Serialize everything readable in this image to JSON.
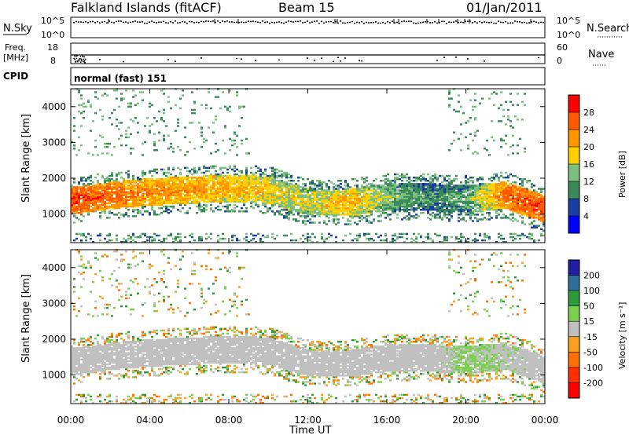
{
  "header": {
    "station": "Falkland Islands (fitACF)",
    "beam": "Beam 15",
    "date": "01/Jan/2011"
  },
  "panels": {
    "nsky_label": "N.Sky",
    "nsearch_label": "N.Search",
    "freq_label_1": "Freq.",
    "freq_label_2": "[MHz]",
    "nave_label": "Nave",
    "cpid_label": "CPID",
    "cpid_value": "normal (fast) 151",
    "noise_ticks": [
      "10^5",
      "10^0"
    ],
    "freq_ticks": [
      "18",
      "8"
    ],
    "nave_ticks": [
      "60",
      "0"
    ]
  },
  "colorbars": {
    "power": {
      "title": "Power [dB]",
      "ticks": [
        "28",
        "24",
        "20",
        "16",
        "12",
        "8",
        "4"
      ],
      "colors": [
        "#ff0000",
        "#ff5a00",
        "#ff9600",
        "#ffd000",
        "#7cc080",
        "#3a8a5a",
        "#1a3fa0",
        "#0000ff"
      ]
    },
    "velocity": {
      "title": "Velocity [m s⁻¹]",
      "ticks": [
        "200",
        "100",
        "50",
        "15",
        "-15",
        "-50",
        "-100",
        "-200"
      ],
      "colors": [
        "#1f1fa0",
        "#2e6e9a",
        "#2f9a3a",
        "#7cd050",
        "#c0c0c0",
        "#ffa020",
        "#ff7000",
        "#ff3000",
        "#ff0000"
      ]
    }
  },
  "chart_data": [
    {
      "type": "heatmap",
      "title": "Power [dB]",
      "xlabel": "Time UT",
      "ylabel": "Slant Range [km]",
      "x_ticks": [
        "00:00",
        "04:00",
        "08:00",
        "12:00",
        "16:00",
        "20:00",
        "00:00"
      ],
      "y_ticks": [
        "1000",
        "2000",
        "3000",
        "4000"
      ],
      "xlim_hours": [
        0,
        24
      ],
      "ylim_km": [
        200,
        4500
      ],
      "colorscale_db": [
        0,
        30
      ],
      "main_band": {
        "hours": [
          0,
          2,
          4,
          6,
          8,
          10,
          12,
          14,
          16,
          18,
          20,
          22,
          24
        ],
        "center_km": [
          1350,
          1500,
          1600,
          1650,
          1700,
          1650,
          1300,
          1300,
          1450,
          1450,
          1400,
          1500,
          1100
        ],
        "mean_power_db": [
          26,
          24,
          22,
          21,
          20,
          18,
          16,
          20,
          14,
          10,
          12,
          24,
          26
        ]
      }
    },
    {
      "type": "heatmap",
      "title": "Velocity [m s⁻¹]",
      "xlabel": "Time UT",
      "ylabel": "Slant Range [km]",
      "x_ticks": [
        "00:00",
        "04:00",
        "08:00",
        "12:00",
        "16:00",
        "20:00",
        "00:00"
      ],
      "y_ticks": [
        "1000",
        "2000",
        "3000",
        "4000"
      ],
      "xlim_hours": [
        0,
        24
      ],
      "ylim_km": [
        200,
        4500
      ],
      "colorscale_ms": [
        -250,
        250
      ],
      "main_band": {
        "hours": [
          0,
          2,
          4,
          6,
          8,
          10,
          12,
          14,
          16,
          18,
          20,
          22,
          24
        ],
        "center_km": [
          1350,
          1500,
          1600,
          1650,
          1700,
          1650,
          1300,
          1300,
          1450,
          1450,
          1400,
          1500,
          1100
        ],
        "typical_velocity_ms": [
          0,
          0,
          0,
          0,
          0,
          0,
          0,
          0,
          0,
          0,
          20,
          10,
          0
        ]
      }
    }
  ]
}
